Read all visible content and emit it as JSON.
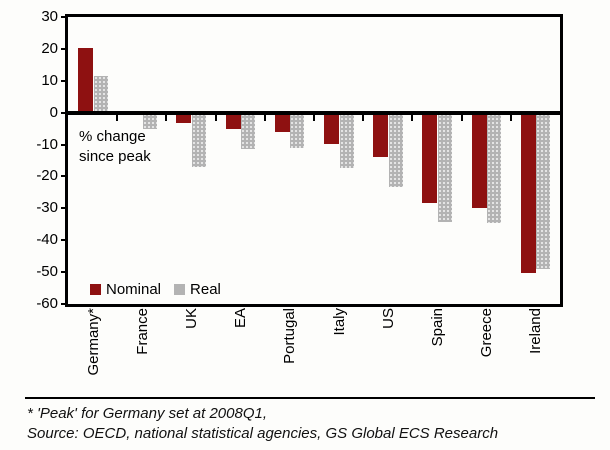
{
  "chart_data": {
    "type": "bar",
    "title": "",
    "categories": [
      "Germany*",
      "France",
      "UK",
      "EA",
      "Portugal",
      "Italy",
      "US",
      "Spain",
      "Greece",
      "Ireland"
    ],
    "series": [
      {
        "name": "Nominal",
        "color": "#8e1111",
        "values": [
          20.2,
          0.5,
          -3.3,
          -5.2,
          -6.0,
          -9.8,
          -14.0,
          -28.4,
          -30.0,
          -50.2
        ]
      },
      {
        "name": "Real",
        "color": "#b3b3b3",
        "values": [
          11.6,
          -5.1,
          -17.0,
          -11.5,
          -11.2,
          -17.4,
          -23.2,
          -34.4,
          -34.7,
          -49.0
        ]
      }
    ],
    "ylim": [
      -60,
      30
    ],
    "yticks": [
      30,
      20,
      10,
      0,
      -10,
      -20,
      -30,
      -40,
      -50,
      -60
    ],
    "xlabel": "",
    "ylabel": "",
    "annotations": [
      "% change since peak"
    ],
    "legend_position": "inside-bottom-left",
    "grid": false,
    "x_labels_rotated_degrees": 90
  },
  "annotation": {
    "line1": "% change",
    "line2": "since peak"
  },
  "legend": {
    "items": [
      {
        "label": "Nominal",
        "color": "#8e1111"
      },
      {
        "label": "Real",
        "color": "#b3b3b3"
      }
    ]
  },
  "footnotes": {
    "line1": "* 'Peak' for Germany set at 2008Q1,",
    "line2": "Source: OECD, national statistical agencies, GS Global ECS Research"
  },
  "colors": {
    "axis": "#000000",
    "background": "#fdfdfb"
  }
}
